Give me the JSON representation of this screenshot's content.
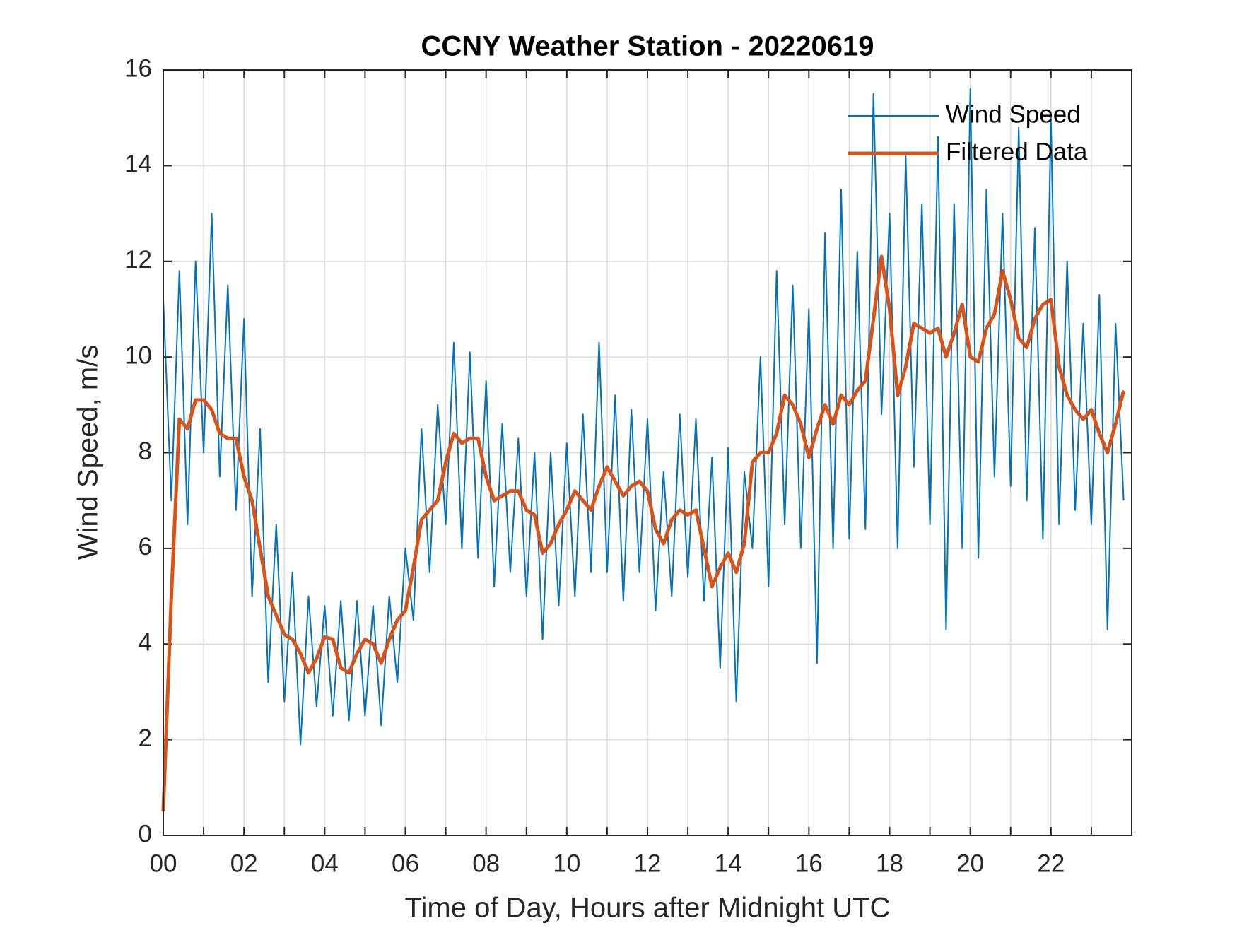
{
  "chart_data": {
    "type": "line",
    "title": "CCNY Weather Station - 20220619",
    "xlabel": "Time of Day, Hours after Midnight UTC",
    "ylabel": "Wind Speed, m/s",
    "x": [
      0,
      0.2,
      0.4,
      0.6,
      0.8,
      1,
      1.2,
      1.4,
      1.6,
      1.8,
      2,
      2.2,
      2.4,
      2.6,
      2.8,
      3,
      3.2,
      3.4,
      3.6,
      3.8,
      4,
      4.2,
      4.4,
      4.6,
      4.8,
      5,
      5.2,
      5.4,
      5.6,
      5.8,
      6,
      6.2,
      6.4,
      6.6,
      6.8,
      7,
      7.2,
      7.4,
      7.6,
      7.8,
      8,
      8.2,
      8.4,
      8.6,
      8.8,
      9,
      9.2,
      9.4,
      9.6,
      9.8,
      10,
      10.2,
      10.4,
      10.6,
      10.8,
      11,
      11.2,
      11.4,
      11.6,
      11.8,
      12,
      12.2,
      12.4,
      12.6,
      12.8,
      13,
      13.2,
      13.4,
      13.6,
      13.8,
      14,
      14.2,
      14.4,
      14.6,
      14.8,
      15,
      15.2,
      15.4,
      15.6,
      15.8,
      16,
      16.2,
      16.4,
      16.6,
      16.8,
      17,
      17.2,
      17.4,
      17.6,
      17.8,
      18,
      18.2,
      18.4,
      18.6,
      18.8,
      19,
      19.2,
      19.4,
      19.6,
      19.8,
      20,
      20.2,
      20.4,
      20.6,
      20.8,
      21,
      21.2,
      21.4,
      21.6,
      21.8,
      22,
      22.2,
      22.4,
      22.6,
      22.8,
      23,
      23.2,
      23.4,
      23.6,
      23.8
    ],
    "series": [
      {
        "name": "Wind Speed",
        "color": "#0072BD",
        "width": 2,
        "values": [
          11.2,
          7.0,
          11.8,
          6.5,
          12.0,
          8.0,
          13.0,
          7.5,
          11.5,
          6.8,
          10.8,
          5.0,
          8.5,
          3.2,
          6.5,
          2.8,
          5.5,
          1.9,
          5.0,
          2.7,
          4.8,
          2.5,
          4.9,
          2.4,
          4.9,
          2.5,
          4.8,
          2.3,
          5.0,
          3.2,
          6.0,
          4.5,
          8.5,
          5.5,
          9.0,
          6.5,
          10.3,
          6.0,
          10.1,
          5.8,
          9.5,
          5.2,
          8.6,
          5.5,
          8.3,
          5.0,
          8.0,
          4.1,
          8.0,
          4.8,
          8.2,
          5.0,
          8.8,
          5.5,
          10.3,
          5.5,
          9.2,
          4.9,
          8.9,
          5.5,
          8.7,
          4.7,
          7.6,
          5.0,
          8.8,
          5.4,
          8.7,
          4.9,
          7.9,
          3.5,
          8.1,
          2.8,
          7.6,
          6.0,
          10.0,
          5.2,
          11.8,
          6.5,
          11.5,
          6.0,
          11.0,
          3.6,
          12.6,
          6.0,
          13.5,
          6.2,
          12.2,
          6.4,
          15.5,
          8.8,
          13.0,
          6.0,
          14.2,
          7.7,
          13.2,
          6.5,
          14.6,
          4.3,
          13.2,
          6.0,
          15.6,
          5.8,
          13.5,
          7.5,
          13.0,
          7.3,
          14.8,
          7.0,
          12.7,
          6.2,
          15.0,
          6.5,
          12.0,
          6.8,
          10.7,
          6.5,
          11.3,
          4.3,
          10.7,
          7.0
        ]
      },
      {
        "name": "Filtered Data",
        "color": "#D95319",
        "width": 5,
        "values": [
          0.5,
          5.0,
          8.7,
          8.5,
          9.1,
          9.1,
          8.9,
          8.4,
          8.3,
          8.3,
          7.5,
          7.0,
          6.0,
          5.0,
          4.6,
          4.2,
          4.1,
          3.8,
          3.4,
          3.7,
          4.15,
          4.1,
          3.5,
          3.4,
          3.8,
          4.1,
          4.0,
          3.6,
          4.1,
          4.5,
          4.7,
          5.6,
          6.6,
          6.8,
          7.0,
          7.8,
          8.4,
          8.2,
          8.3,
          8.3,
          7.5,
          7.0,
          7.1,
          7.2,
          7.2,
          6.8,
          6.7,
          5.9,
          6.1,
          6.5,
          6.8,
          7.2,
          7.0,
          6.8,
          7.3,
          7.7,
          7.4,
          7.1,
          7.3,
          7.4,
          7.2,
          6.4,
          6.1,
          6.6,
          6.8,
          6.7,
          6.8,
          6.0,
          5.2,
          5.6,
          5.9,
          5.5,
          6.1,
          7.8,
          8.0,
          8.0,
          8.4,
          9.2,
          9.0,
          8.6,
          7.9,
          8.5,
          9.0,
          8.6,
          9.2,
          9.0,
          9.3,
          9.5,
          10.8,
          12.1,
          11.0,
          9.2,
          9.8,
          10.7,
          10.6,
          10.5,
          10.6,
          10.0,
          10.5,
          11.1,
          10.0,
          9.9,
          10.6,
          10.9,
          11.8,
          11.2,
          10.4,
          10.2,
          10.8,
          11.1,
          11.2,
          9.8,
          9.2,
          8.9,
          8.7,
          8.9,
          8.4,
          8.0,
          8.6,
          9.3
        ]
      }
    ],
    "xlim": [
      0,
      24
    ],
    "xticks": [
      {
        "value": 0,
        "label": "00"
      },
      {
        "value": 2,
        "label": "02"
      },
      {
        "value": 4,
        "label": "04"
      },
      {
        "value": 6,
        "label": "06"
      },
      {
        "value": 8,
        "label": "08"
      },
      10,
      12,
      14,
      16,
      18,
      20,
      22
    ],
    "xminorticks": [
      1,
      3,
      5,
      7,
      9,
      11,
      13,
      15,
      17,
      19,
      21,
      23
    ],
    "ylim": [
      0,
      16
    ],
    "yticks": [
      0,
      2,
      4,
      6,
      8,
      10,
      12,
      14,
      16
    ],
    "grid": true,
    "legend": "top-right"
  }
}
